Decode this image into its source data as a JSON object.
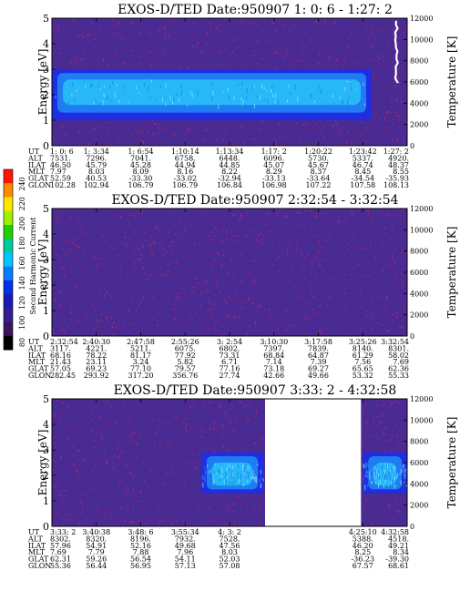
{
  "colors": {
    "background": "#4a2a93",
    "band_outer": "#1e2ee0",
    "band_mid": "#1f7cf2",
    "band_core": "#27b8f7",
    "band_hot": "#8ee7ff",
    "noise": "#cc2a5a",
    "gap": "#ffffff",
    "temperature_line": "#ffffff"
  },
  "colorbar": {
    "label": "Second Harmonic Current",
    "ticks": [
      "240",
      "220",
      "200",
      "180",
      "160",
      "140",
      "120",
      "100",
      "80"
    ],
    "colors": [
      "#ff1500",
      "#ff8c00",
      "#ffe600",
      "#9ef000",
      "#1ed200",
      "#00c8a0",
      "#00c8ff",
      "#0a7cff",
      "#0032e6",
      "#1a1ab4",
      "#321e8c",
      "#3c145a",
      "#000000"
    ]
  },
  "chart_data": [
    {
      "type": "heatmap",
      "title": "EXOS-D/TED   Date:950907  1: 0: 6 - 1:27: 2",
      "ylabel": "Energy [eV]",
      "y2label": "Temperature [K]",
      "ylim": [
        0,
        5
      ],
      "y2lim": [
        0,
        12000
      ],
      "yticks": [
        "0",
        "1",
        "2",
        "3",
        "4",
        "5"
      ],
      "y2ticks": [
        "0",
        "2000",
        "4000",
        "6000",
        "8000",
        "10000",
        "12000"
      ],
      "band": {
        "t_start": 0.0,
        "t_end": 0.9,
        "core_ev": [
          1.6,
          2.6
        ],
        "mid_ev": [
          1.3,
          2.85
        ],
        "outer_ev": [
          1.0,
          3.0
        ]
      },
      "temperature_trace": {
        "t": 0.97,
        "ev_from": 2.5,
        "ev_to": 5.0
      },
      "gaps": [],
      "orbit_rows": [
        "UT",
        "ALT",
        "ILAT",
        "MLT",
        "GLAT",
        "GLON"
      ],
      "orbit": [
        {
          "UT": "1: 0: 6",
          "ALT": "7531.",
          "ILAT": "46.50",
          "MLT": "7.97",
          "GLAT": "52.59",
          "GLON": "102.28"
        },
        {
          "UT": "1: 3:34",
          "ALT": "7296.",
          "ILAT": "45.79",
          "MLT": "8.03",
          "GLAT": "40.53",
          "GLON": "102.94"
        },
        {
          "UT": "1: 6:54",
          "ALT": "7041.",
          "ILAT": "45.28",
          "MLT": "8.09",
          "GLAT": "-33.30",
          "GLON": "106.79"
        },
        {
          "UT": "1:10:14",
          "ALT": "6758.",
          "ILAT": "44.94",
          "MLT": "8.16",
          "GLAT": "-33.02",
          "GLON": "106.79"
        },
        {
          "UT": "1:13:34",
          "ALT": "6448.",
          "ILAT": "44.85",
          "MLT": "8.22",
          "GLAT": "-32.94",
          "GLON": "106.84"
        },
        {
          "UT": "1:17: 2",
          "ALT": "6096.",
          "ILAT": "45.07",
          "MLT": "8.29",
          "GLAT": "-33.13",
          "GLON": "106.98"
        },
        {
          "UT": "1:20:22",
          "ALT": "5730.",
          "ILAT": "45.67",
          "MLT": "8.37",
          "GLAT": "-33.64",
          "GLON": "107.22"
        },
        {
          "UT": "1:23:42",
          "ALT": "5337.",
          "ILAT": "46.74",
          "MLT": "8.45",
          "GLAT": "-34.54",
          "GLON": "107.58"
        },
        {
          "UT": "1:27: 2",
          "ALT": "4920.",
          "ILAT": "48.37",
          "MLT": "8.55",
          "GLAT": "-35.93",
          "GLON": "108.13"
        }
      ]
    },
    {
      "type": "heatmap",
      "title": "EXOS-D/TED   Date:950907  2:32:54 - 3:32:54",
      "ylabel": "Energy [eV]",
      "y2label": "Temperature [K]",
      "ylim": [
        0,
        5
      ],
      "y2lim": [
        0,
        12000
      ],
      "yticks": [
        "0",
        "1",
        "2",
        "3",
        "4",
        "5"
      ],
      "y2ticks": [
        "0",
        "2000",
        "4000",
        "6000",
        "8000",
        "10000",
        "12000"
      ],
      "band": null,
      "temperature_trace": null,
      "gaps": [],
      "orbit_rows": [
        "UT",
        "ALT",
        "ILAT",
        "MLT",
        "GLAT",
        "GLON"
      ],
      "orbit": [
        {
          "UT": "2:32:54",
          "ALT": "3117.",
          "ILAT": "68.16",
          "MLT": "21.43",
          "GLAT": "57.05",
          "GLON": "282.45"
        },
        {
          "UT": "2:40:30",
          "ALT": "4221.",
          "ILAT": "78.22",
          "MLT": "23.11",
          "GLAT": "69.23",
          "GLON": "293.92"
        },
        {
          "UT": "2:47:58",
          "ALT": "5211.",
          "ILAT": "81.17",
          "MLT": "3.24",
          "GLAT": "77.10",
          "GLON": "317.20"
        },
        {
          "UT": "2:55:26",
          "ALT": "6075.",
          "ILAT": "77.92",
          "MLT": "5.82",
          "GLAT": "79.57",
          "GLON": "356.76"
        },
        {
          "UT": "3: 2:54",
          "ALT": "6802.",
          "ILAT": "73.31",
          "MLT": "6.71",
          "GLAT": "77.16",
          "GLON": "27.74"
        },
        {
          "UT": "3:10:30",
          "ALT": "7397.",
          "ILAT": "68.84",
          "MLT": "7.14",
          "GLAT": "73.18",
          "GLON": "42.66"
        },
        {
          "UT": "3:17:58",
          "ALT": "7839.",
          "ILAT": "64.87",
          "MLT": "7.39",
          "GLAT": "69.27",
          "GLON": "49.66"
        },
        {
          "UT": "3:25:26",
          "ALT": "8140.",
          "ILAT": "61.29",
          "MLT": "7.56",
          "GLAT": "65.65",
          "GLON": "53.32"
        },
        {
          "UT": "3:32:54",
          "ALT": "8301.",
          "ILAT": "58.02",
          "MLT": "7.69",
          "GLAT": "62.36",
          "GLON": "55.33"
        }
      ]
    },
    {
      "type": "heatmap",
      "title": "EXOS-D/TED   Date:950907  3:33: 2 - 4:32:58",
      "ylabel": "Energy [eV]",
      "y2label": "Temperature [K]",
      "ylim": [
        0,
        5
      ],
      "y2lim": [
        0,
        12000
      ],
      "yticks": [
        "0",
        "1",
        "2",
        "3",
        "4",
        "5"
      ],
      "y2ticks": [
        "0",
        "2000",
        "4000",
        "6000",
        "8000",
        "10000",
        "12000"
      ],
      "band": {
        "t_start": 0.42,
        "t_end": 0.595,
        "core_ev": [
          1.6,
          2.5
        ],
        "mid_ev": [
          1.45,
          2.75
        ],
        "outer_ev": [
          1.3,
          2.9
        ],
        "late_start": 0.875,
        "late_end": 1.0
      },
      "temperature_trace": null,
      "gaps": [
        [
          0.6,
          0.87
        ]
      ],
      "orbit_rows": [
        "UT",
        "ALT",
        "ILAT",
        "MLT",
        "GLAT",
        "GLON"
      ],
      "orbit": [
        {
          "UT": "3:33: 2",
          "ALT": "8302.",
          "ILAT": "57.96",
          "MLT": "7.69",
          "GLAT": "62.31",
          "GLON": "55.36"
        },
        {
          "UT": "3:40:38",
          "ALT": "8320.",
          "ILAT": "54.91",
          "MLT": "7.79",
          "GLAT": "59.26",
          "GLON": "56.44"
        },
        {
          "UT": "3:48: 6",
          "ALT": "8196.",
          "ILAT": "52.16",
          "MLT": "7.88",
          "GLAT": "56.54",
          "GLON": "56.95"
        },
        {
          "UT": "3:55:34",
          "ALT": "7932.",
          "ILAT": "49.68",
          "MLT": "7.96",
          "GLAT": "54.11",
          "GLON": "57.13"
        },
        {
          "UT": "4: 3: 2",
          "ALT": "7528.",
          "ILAT": "47.56",
          "MLT": "8.03",
          "GLAT": "52.03",
          "GLON": "57.08"
        },
        {
          "UT": "4:25:10",
          "ALT": "5388.",
          "ILAT": "46.20",
          "MLT": "8.25",
          "GLAT": "-36.23",
          "GLON": "67.57"
        },
        {
          "UT": "4:32:58",
          "ALT": "4518.",
          "ILAT": "49.21",
          "MLT": "8.34",
          "GLAT": "-39.30",
          "GLON": "68.61"
        }
      ]
    }
  ]
}
